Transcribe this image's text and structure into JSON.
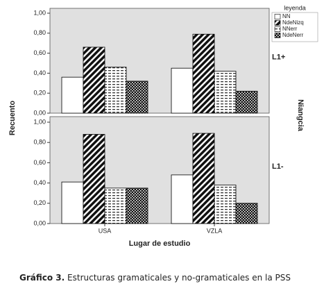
{
  "chart_data": {
    "type": "bar",
    "y_label": "Recuento",
    "x_label": "Lugar de estudio",
    "legend_title": "leyenda",
    "facet_label": "Niangcia",
    "categories": [
      "USA",
      "VZLA"
    ],
    "ylim": [
      0,
      1
    ],
    "yticks": [
      {
        "value": 0,
        "label": "0,00"
      },
      {
        "value": 0.2,
        "label": "0,20"
      },
      {
        "value": 0.4,
        "label": "0,40"
      },
      {
        "value": 0.6,
        "label": "0,60"
      },
      {
        "value": 0.8,
        "label": "0,80"
      },
      {
        "value": 1,
        "label": "1,00"
      }
    ],
    "series": [
      {
        "name": "NN",
        "pattern": "blank"
      },
      {
        "name": "NdeNizq",
        "pattern": "diagonal"
      },
      {
        "name": "NNerr",
        "pattern": "dashes"
      },
      {
        "name": "NdeNerr",
        "pattern": "checker"
      }
    ],
    "panels": [
      {
        "label": "L1+",
        "values": [
          [
            0.36,
            0.45
          ],
          [
            0.66,
            0.79
          ],
          [
            0.46,
            0.42
          ],
          [
            0.32,
            0.22
          ]
        ]
      },
      {
        "label": "L1-",
        "values": [
          [
            0.41,
            0.48
          ],
          [
            0.88,
            0.89
          ],
          [
            0.35,
            0.38
          ],
          [
            0.35,
            0.2
          ]
        ]
      }
    ]
  },
  "caption": {
    "label": "Gráfico 3.",
    "text": "Estructuras gramaticales y no-gramaticales en la PSS"
  }
}
